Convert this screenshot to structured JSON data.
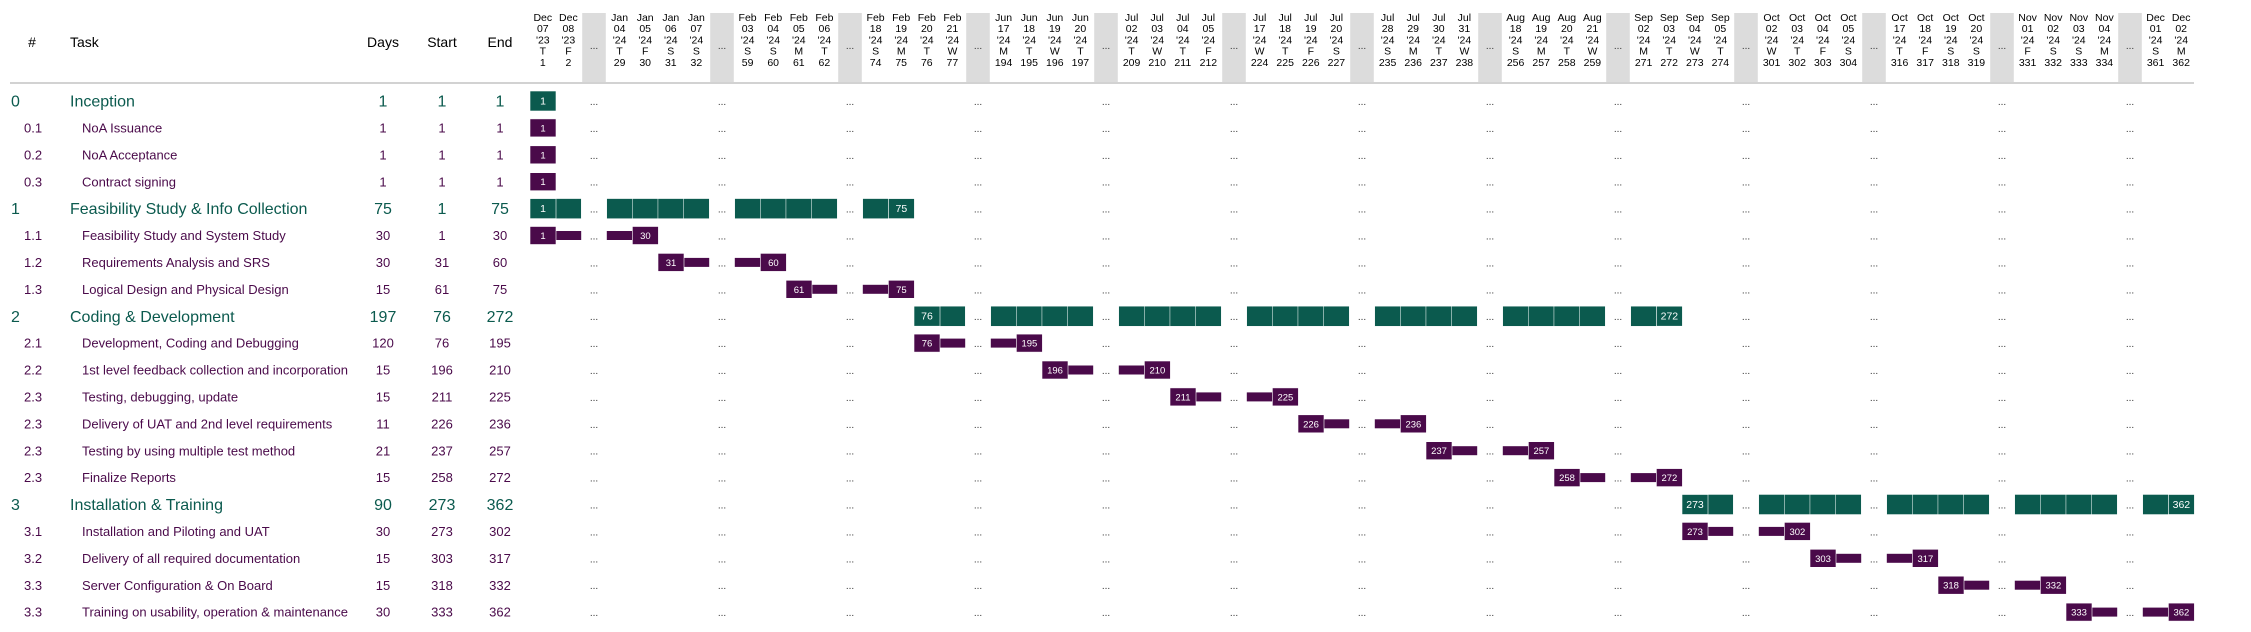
{
  "colors": {
    "phase": "#0b5a4e",
    "task": "#4a0a4a",
    "gap": "#dcdcdc",
    "header_rule": "#888888",
    "header_text": "#000000"
  },
  "header": {
    "num": "#",
    "task": "Task",
    "days": "Days",
    "start": "Start",
    "end": "End",
    "gap_label": "...",
    "day_groups": [
      [
        [
          "Dec",
          "07",
          "'23",
          "T",
          "1"
        ],
        [
          "Dec",
          "08",
          "'23",
          "F",
          "2"
        ]
      ],
      [
        [
          "Jan",
          "04",
          "'24",
          "T",
          "29"
        ],
        [
          "Jan",
          "05",
          "'24",
          "F",
          "30"
        ],
        [
          "Jan",
          "06",
          "'24",
          "S",
          "31"
        ],
        [
          "Jan",
          "07",
          "'24",
          "S",
          "32"
        ]
      ],
      [
        [
          "Feb",
          "03",
          "'24",
          "S",
          "59"
        ],
        [
          "Feb",
          "04",
          "'24",
          "S",
          "60"
        ],
        [
          "Feb",
          "05",
          "'24",
          "M",
          "61"
        ],
        [
          "Feb",
          "06",
          "'24",
          "T",
          "62"
        ]
      ],
      [
        [
          "Feb",
          "18",
          "'24",
          "S",
          "74"
        ],
        [
          "Feb",
          "19",
          "'24",
          "M",
          "75"
        ],
        [
          "Feb",
          "20",
          "'24",
          "T",
          "76"
        ],
        [
          "Feb",
          "21",
          "'24",
          "W",
          "77"
        ]
      ],
      [
        [
          "Jun",
          "17",
          "'24",
          "M",
          "194"
        ],
        [
          "Jun",
          "18",
          "'24",
          "T",
          "195"
        ],
        [
          "Jun",
          "19",
          "'24",
          "W",
          "196"
        ],
        [
          "Jun",
          "20",
          "'24",
          "T",
          "197"
        ]
      ],
      [
        [
          "Jul",
          "02",
          "'24",
          "T",
          "209"
        ],
        [
          "Jul",
          "03",
          "'24",
          "W",
          "210"
        ],
        [
          "Jul",
          "04",
          "'24",
          "T",
          "211"
        ],
        [
          "Jul",
          "05",
          "'24",
          "F",
          "212"
        ]
      ],
      [
        [
          "Jul",
          "17",
          "'24",
          "W",
          "224"
        ],
        [
          "Jul",
          "18",
          "'24",
          "T",
          "225"
        ],
        [
          "Jul",
          "19",
          "'24",
          "F",
          "226"
        ],
        [
          "Jul",
          "20",
          "'24",
          "S",
          "227"
        ]
      ],
      [
        [
          "Jul",
          "28",
          "'24",
          "S",
          "235"
        ],
        [
          "Jul",
          "29",
          "'24",
          "M",
          "236"
        ],
        [
          "Jul",
          "30",
          "'24",
          "T",
          "237"
        ],
        [
          "Jul",
          "31",
          "'24",
          "W",
          "238"
        ]
      ],
      [
        [
          "Aug",
          "18",
          "'24",
          "S",
          "256"
        ],
        [
          "Aug",
          "19",
          "'24",
          "M",
          "257"
        ],
        [
          "Aug",
          "20",
          "'24",
          "T",
          "258"
        ],
        [
          "Aug",
          "21",
          "'24",
          "W",
          "259"
        ]
      ],
      [
        [
          "Sep",
          "02",
          "'24",
          "M",
          "271"
        ],
        [
          "Sep",
          "03",
          "'24",
          "T",
          "272"
        ],
        [
          "Sep",
          "04",
          "'24",
          "W",
          "273"
        ],
        [
          "Sep",
          "05",
          "'24",
          "T",
          "274"
        ]
      ],
      [
        [
          "Oct",
          "02",
          "'24",
          "W",
          "301"
        ],
        [
          "Oct",
          "03",
          "'24",
          "T",
          "302"
        ],
        [
          "Oct",
          "04",
          "'24",
          "F",
          "303"
        ],
        [
          "Oct",
          "05",
          "'24",
          "S",
          "304"
        ]
      ],
      [
        [
          "Oct",
          "17",
          "'24",
          "T",
          "316"
        ],
        [
          "Oct",
          "18",
          "'24",
          "F",
          "317"
        ],
        [
          "Oct",
          "19",
          "'24",
          "S",
          "318"
        ],
        [
          "Oct",
          "20",
          "'24",
          "S",
          "319"
        ]
      ],
      [
        [
          "Nov",
          "01",
          "'24",
          "F",
          "331"
        ],
        [
          "Nov",
          "02",
          "'24",
          "S",
          "332"
        ],
        [
          "Nov",
          "03",
          "'24",
          "S",
          "333"
        ],
        [
          "Nov",
          "04",
          "'24",
          "M",
          "334"
        ]
      ],
      [
        [
          "Dec",
          "01",
          "'24",
          "S",
          "361"
        ],
        [
          "Dec",
          "02",
          "'24",
          "M",
          "362"
        ]
      ]
    ]
  },
  "chart_data": {
    "type": "gantt",
    "unit": "day",
    "rows": [
      {
        "id": "0",
        "task": "Inception",
        "days": 1,
        "start": 1,
        "end": 1,
        "level": "phase"
      },
      {
        "id": "0.1",
        "task": "NoA Issuance",
        "days": 1,
        "start": 1,
        "end": 1,
        "level": "task"
      },
      {
        "id": "0.2",
        "task": "NoA Acceptance",
        "days": 1,
        "start": 1,
        "end": 1,
        "level": "task"
      },
      {
        "id": "0.3",
        "task": "Contract signing",
        "days": 1,
        "start": 1,
        "end": 1,
        "level": "task"
      },
      {
        "id": "1",
        "task": "Feasibility Study & Info Collection",
        "days": 75,
        "start": 1,
        "end": 75,
        "level": "phase"
      },
      {
        "id": "1.1",
        "task": "Feasibility Study and System Study",
        "days": 30,
        "start": 1,
        "end": 30,
        "level": "task"
      },
      {
        "id": "1.2",
        "task": "Requirements Analysis and SRS",
        "days": 30,
        "start": 31,
        "end": 60,
        "level": "task"
      },
      {
        "id": "1.3",
        "task": "Logical Design and Physical Design",
        "days": 15,
        "start": 61,
        "end": 75,
        "level": "task"
      },
      {
        "id": "2",
        "task": "Coding & Development",
        "days": 197,
        "start": 76,
        "end": 272,
        "level": "phase"
      },
      {
        "id": "2.1",
        "task": "Development, Coding and Debugging",
        "days": 120,
        "start": 76,
        "end": 195,
        "level": "task"
      },
      {
        "id": "2.2",
        "task": "1st level feedback collection and incorporation",
        "days": 15,
        "start": 196,
        "end": 210,
        "level": "task"
      },
      {
        "id": "2.3",
        "task": "Testing, debugging, update",
        "days": 15,
        "start": 211,
        "end": 225,
        "level": "task"
      },
      {
        "id": "2.3",
        "task": "Delivery of UAT and 2nd level requirements",
        "days": 11,
        "start": 226,
        "end": 236,
        "level": "task"
      },
      {
        "id": "2.3",
        "task": "Testing by using multiple test method",
        "days": 21,
        "start": 237,
        "end": 257,
        "level": "task"
      },
      {
        "id": "2.3",
        "task": "Finalize Reports",
        "days": 15,
        "start": 258,
        "end": 272,
        "level": "task"
      },
      {
        "id": "3",
        "task": "Installation & Training",
        "days": 90,
        "start": 273,
        "end": 362,
        "level": "phase"
      },
      {
        "id": "3.1",
        "task": "Installation and Piloting and UAT",
        "days": 30,
        "start": 273,
        "end": 302,
        "level": "task"
      },
      {
        "id": "3.2",
        "task": "Delivery of all required documentation",
        "days": 15,
        "start": 303,
        "end": 317,
        "level": "task"
      },
      {
        "id": "3.3",
        "task": "Server Configuration & On Board",
        "days": 15,
        "start": 318,
        "end": 332,
        "level": "task"
      },
      {
        "id": "3.3",
        "task": "Training on usability, operation & maintenance",
        "days": 30,
        "start": 333,
        "end": 362,
        "level": "task"
      }
    ]
  }
}
